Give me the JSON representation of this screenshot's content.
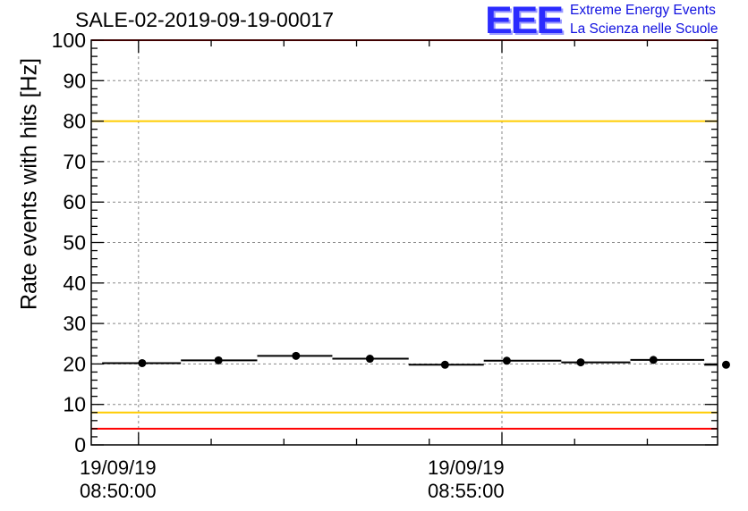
{
  "title": "SALE-02-2019-09-19-00017",
  "logo": {
    "mark": "EEE",
    "line1": "Extreme Energy Events",
    "line2": "La Scienza nelle Scuole"
  },
  "colors": {
    "red_limit": "#ff0000",
    "yellow_limit": "#ffcc00",
    "data": "#000000",
    "grid": "#888888",
    "logo": "#2b2bff"
  },
  "chart_data": {
    "type": "scatter",
    "title": "SALE-02-2019-09-19-00017",
    "ylabel": "Rate events with hits [Hz]",
    "xlabel": "",
    "ylim": [
      0,
      100
    ],
    "yticks": [
      0,
      10,
      20,
      30,
      40,
      50,
      60,
      70,
      80,
      90,
      100
    ],
    "xlim": [
      "08:49:21",
      "08:57:58"
    ],
    "x_tick_labels": [
      {
        "time": "08:50:00",
        "date": "19/09/19",
        "label_time": "08:50:00"
      },
      {
        "time": "08:55:00",
        "date": "19/09/19",
        "label_time": "08:55:00"
      }
    ],
    "grid": true,
    "points": [
      {
        "x": "08:50:03",
        "y": 20.2,
        "bin_start": "08:49:30",
        "bin_end": "08:50:35"
      },
      {
        "x": "08:51:06",
        "y": 20.9,
        "bin_start": "08:50:35",
        "bin_end": "08:51:38"
      },
      {
        "x": "08:52:10",
        "y": 22.0,
        "bin_start": "08:51:38",
        "bin_end": "08:52:40"
      },
      {
        "x": "08:53:11",
        "y": 21.3,
        "bin_start": "08:52:40",
        "bin_end": "08:53:43"
      },
      {
        "x": "08:54:13",
        "y": 19.8,
        "bin_start": "08:53:43",
        "bin_end": "08:54:45"
      },
      {
        "x": "08:55:04",
        "y": 20.8,
        "bin_start": "08:54:45",
        "bin_end": "08:55:49"
      },
      {
        "x": "08:56:05",
        "y": 20.4,
        "bin_start": "08:55:49",
        "bin_end": "08:56:46"
      },
      {
        "x": "08:57:05",
        "y": 21.0,
        "bin_start": "08:56:46",
        "bin_end": "08:57:47"
      },
      {
        "x": "08:58:05",
        "y": 19.8,
        "bin_start": "08:57:47",
        "bin_end": "08:57:58"
      }
    ],
    "reference_lines": [
      {
        "y": 100,
        "color": "#ff0000"
      },
      {
        "y": 80,
        "color": "#ffcc00"
      },
      {
        "y": 8,
        "color": "#ffcc00"
      },
      {
        "y": 4,
        "color": "#ff0000"
      }
    ]
  }
}
